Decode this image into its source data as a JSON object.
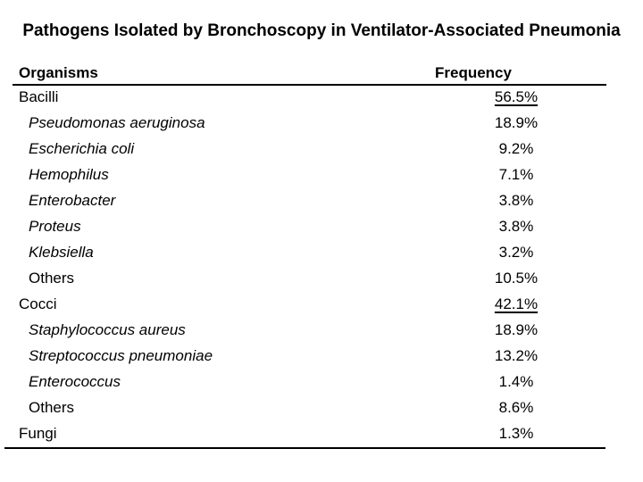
{
  "colors": {
    "background": "#ffffff",
    "text": "#000000",
    "rule": "#000000"
  },
  "title": "Pathogens Isolated by Bronchoscopy in Ventilator-Associated Pneumonia",
  "table": {
    "header": {
      "organisms": "Organisms",
      "frequency": "Frequency"
    },
    "rows": [
      {
        "name": "Bacilli",
        "value": "56.5%"
      },
      {
        "name": "Pseudomonas aeruginosa",
        "value": "18.9%"
      },
      {
        "name": "Escherichia coli",
        "value": "9.2%"
      },
      {
        "name": "Hemophilus",
        "value": "7.1%"
      },
      {
        "name": "Enterobacter",
        "value": "3.8%"
      },
      {
        "name": "Proteus",
        "value": "3.8%"
      },
      {
        "name": "Klebsiella",
        "value": "3.2%"
      },
      {
        "name": "Others",
        "value": "10.5%"
      },
      {
        "name": "Cocci",
        "value": "42.1%"
      },
      {
        "name": "Staphylococcus aureus",
        "value": "18.9%"
      },
      {
        "name": "Streptococcus pneumoniae",
        "value": "13.2%"
      },
      {
        "name": "Enterococcus",
        "value": "1.4%"
      },
      {
        "name": "Others",
        "value": "8.6%"
      },
      {
        "name": "Fungi",
        "value": "1.3%"
      }
    ]
  }
}
